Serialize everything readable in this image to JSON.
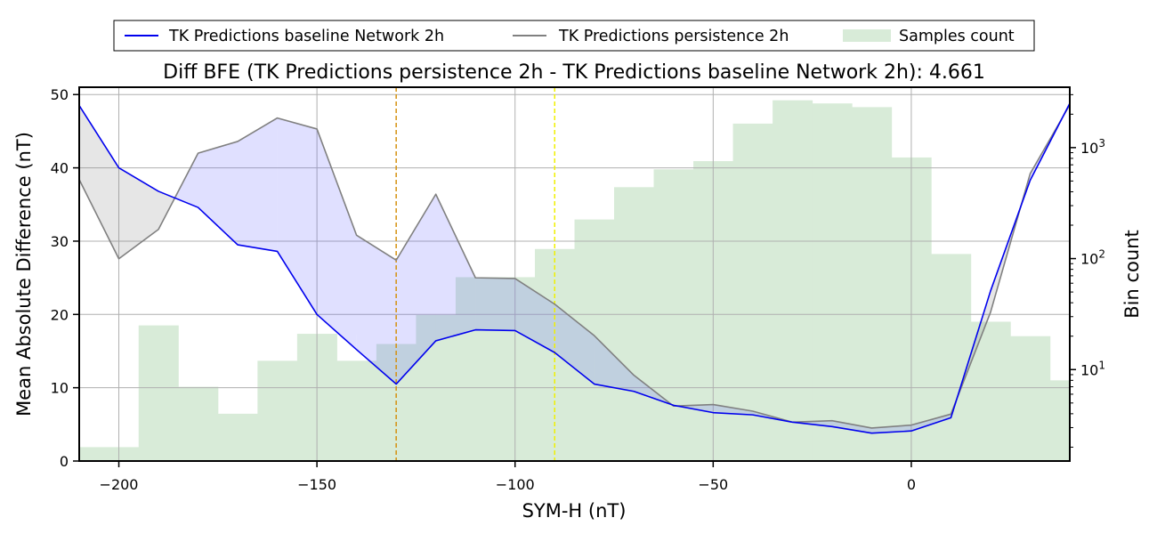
{
  "chart_data": {
    "type": "line",
    "title": "Diff BFE (TK Predictions persistence 2h - TK Predictions baseline Network 2h): 4.661",
    "xlabel": "SYM-H (nT)",
    "ylabel": "Mean Absolute Difference (nT)",
    "y2label": "Bin count",
    "xlim": [
      -210,
      40
    ],
    "ylim": [
      0,
      51
    ],
    "y2_scale": "log",
    "y2lim": [
      1.5,
      3500
    ],
    "x_ticks": [
      -200,
      -150,
      -100,
      -50,
      0
    ],
    "x_tick_labels": [
      "−200",
      "−150",
      "−100",
      "−50",
      "0"
    ],
    "y_ticks": [
      0,
      10,
      20,
      30,
      40,
      50
    ],
    "y_tick_labels": [
      "0",
      "10",
      "20",
      "30",
      "40",
      "50"
    ],
    "y2_ticks": [
      {
        "value": 10,
        "base": "10",
        "exp": "1"
      },
      {
        "value": 100,
        "base": "10",
        "exp": "2"
      },
      {
        "value": 1000,
        "base": "10",
        "exp": "3"
      }
    ],
    "grid": true,
    "legend_position": "top-center",
    "x": [
      -210,
      -200,
      -190,
      -180,
      -170,
      -160,
      -150,
      -140,
      -130,
      -120,
      -110,
      -100,
      -90,
      -80,
      -70,
      -60,
      -50,
      -40,
      -30,
      -20,
      -10,
      0,
      10,
      20,
      30,
      40
    ],
    "series": [
      {
        "name": "TK Predictions baseline Network 2h",
        "color": "#0000ee",
        "values": [
          48.5,
          40.0,
          36.8,
          34.6,
          29.5,
          28.6,
          20.0,
          15.2,
          10.5,
          16.4,
          17.9,
          17.8,
          14.8,
          10.5,
          9.5,
          7.6,
          6.6,
          6.3,
          5.3,
          4.7,
          3.8,
          4.1,
          5.9,
          23.2,
          38.3,
          48.8
        ]
      },
      {
        "name": "TK Predictions persistence 2h",
        "color": "#808080",
        "values": [
          38.4,
          27.6,
          31.6,
          42.0,
          43.6,
          46.8,
          45.3,
          30.8,
          27.4,
          36.4,
          25.0,
          24.9,
          21.4,
          17.1,
          11.7,
          7.5,
          7.7,
          6.8,
          5.3,
          5.5,
          4.5,
          4.9,
          6.4,
          20.3,
          39.2,
          48.6
        ]
      }
    ],
    "fill_colors": {
      "persistence_higher": "#6666ff",
      "baseline_higher": "#808080"
    },
    "histogram": {
      "name": "Samples count",
      "color": "#d8ebd8",
      "bin_edges": [
        -210,
        -195,
        -185,
        -175,
        -165,
        -155,
        -145,
        -135,
        -125,
        -115,
        -105,
        -95,
        -85,
        -75,
        -65,
        -55,
        -45,
        -35,
        -25,
        -15,
        -5,
        5,
        15,
        25,
        35,
        40
      ],
      "counts": [
        2,
        25,
        7,
        4,
        12,
        21,
        12,
        17,
        31,
        68,
        68,
        122,
        225,
        440,
        637,
        755,
        1645,
        2670,
        2500,
        2315,
        815,
        110,
        27,
        20,
        8
      ]
    },
    "vlines": [
      {
        "x": -130,
        "color": "#d4900e"
      },
      {
        "x": -90,
        "color": "#f0f000"
      }
    ]
  }
}
